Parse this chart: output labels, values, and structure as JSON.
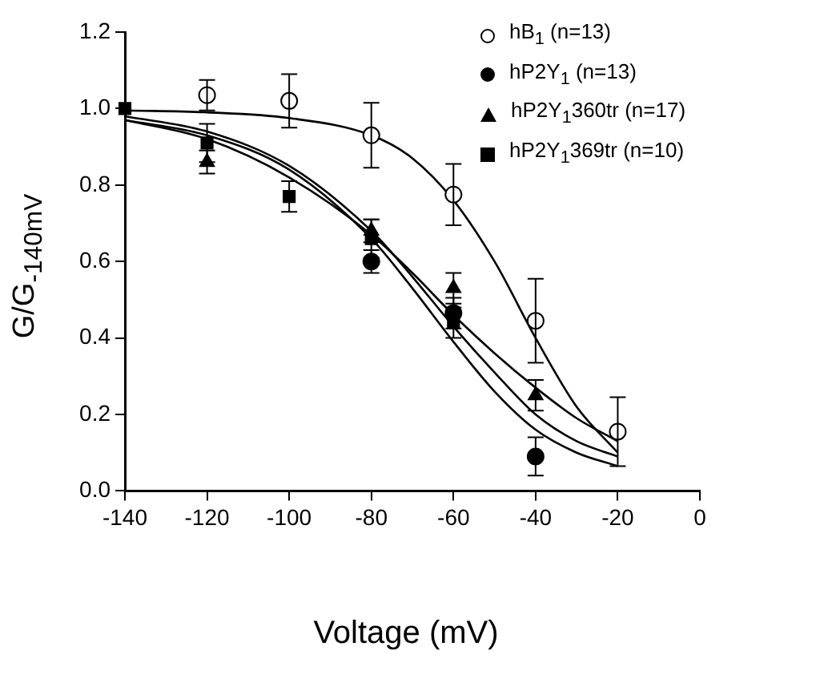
{
  "chart_data": {
    "type": "scatter",
    "xlabel": "Voltage (mV)",
    "ylabel": "G/G$_{-140mV}$",
    "xlim": [
      -140,
      0
    ],
    "ylim": [
      0,
      1.2
    ],
    "xticks": [
      -140,
      -120,
      -100,
      -80,
      -60,
      -40,
      -20,
      0
    ],
    "yticks": [
      {
        "value": 0,
        "label": "0.0"
      },
      {
        "value": 0.2,
        "label": "0.2"
      },
      {
        "value": 0.4,
        "label": "0.4"
      },
      {
        "value": 0.6,
        "label": "0.6"
      },
      {
        "value": 0.8,
        "label": "0.8"
      },
      {
        "value": 1,
        "label": "1.0"
      },
      {
        "value": 1.2,
        "label": "1.2"
      }
    ],
    "legend": "top right",
    "series": [
      {
        "name": "hB$_{1}$ (n=13)",
        "type": "scatter",
        "marker": "circle",
        "color": "#ffffff",
        "x": [
          -120,
          -100,
          -80,
          -60,
          -40,
          -20
        ],
        "values": [
          1.035,
          1.02,
          0.93,
          0.775,
          0.445,
          0.155
        ],
        "errors": [
          0.04,
          0.07,
          0.085,
          0.08,
          0.11,
          0.09
        ]
      },
      {
        "name": "hP2Y$_{1}$ (n=13)",
        "type": "scatter",
        "marker": "circle",
        "color": "#000000",
        "x": [
          -80,
          -60,
          -40
        ],
        "values": [
          0.6,
          0.465,
          0.09
        ],
        "errors": [
          0.03,
          0.04,
          0.05
        ]
      },
      {
        "name": "hP2Y$_{1}$360tr (n=17)",
        "type": "scatter",
        "marker": "triangle",
        "color": "#000000",
        "x": [
          -120,
          -80,
          -60,
          -40
        ],
        "values": [
          0.86,
          0.68,
          0.53,
          0.25
        ],
        "errors": [
          0.03,
          0.03,
          0.04,
          0.04
        ]
      },
      {
        "name": "hP2Y$_{1}$369tr (n=10)",
        "type": "scatter",
        "marker": "square",
        "color": "#000000",
        "x": [
          -140,
          -120,
          -100,
          -80,
          -60
        ],
        "values": [
          1.0,
          0.91,
          0.77,
          0.66,
          0.44
        ],
        "errors": [
          null,
          0.05,
          0.04,
          0.05,
          0.04
        ]
      },
      {
        "type": "line",
        "color": "#000000",
        "x": [
          -140,
          -120,
          -100,
          -80,
          -70,
          -60,
          -50,
          -40,
          -30,
          -20
        ],
        "values": [
          0.995,
          0.99,
          0.975,
          0.93,
          0.87,
          0.76,
          0.6,
          0.4,
          0.22,
          0.1
        ]
      },
      {
        "type": "line",
        "color": "#000000",
        "x": [
          -140,
          -120,
          -100,
          -80,
          -70,
          -60,
          -50,
          -40,
          -30,
          -20
        ],
        "values": [
          0.97,
          0.93,
          0.84,
          0.66,
          0.53,
          0.39,
          0.26,
          0.16,
          0.1,
          0.065
        ]
      },
      {
        "type": "line",
        "color": "#000000",
        "x": [
          -140,
          -120,
          -100,
          -80,
          -70,
          -60,
          -50,
          -40,
          -30,
          -20
        ],
        "values": [
          0.97,
          0.92,
          0.82,
          0.67,
          0.57,
          0.46,
          0.36,
          0.27,
          0.19,
          0.13
        ]
      },
      {
        "type": "line",
        "color": "#000000",
        "x": [
          -140,
          -120,
          -100,
          -80,
          -70,
          -60,
          -50,
          -40,
          -30,
          -20
        ],
        "values": [
          0.98,
          0.94,
          0.85,
          0.68,
          0.56,
          0.43,
          0.31,
          0.2,
          0.13,
          0.09
        ]
      }
    ]
  }
}
